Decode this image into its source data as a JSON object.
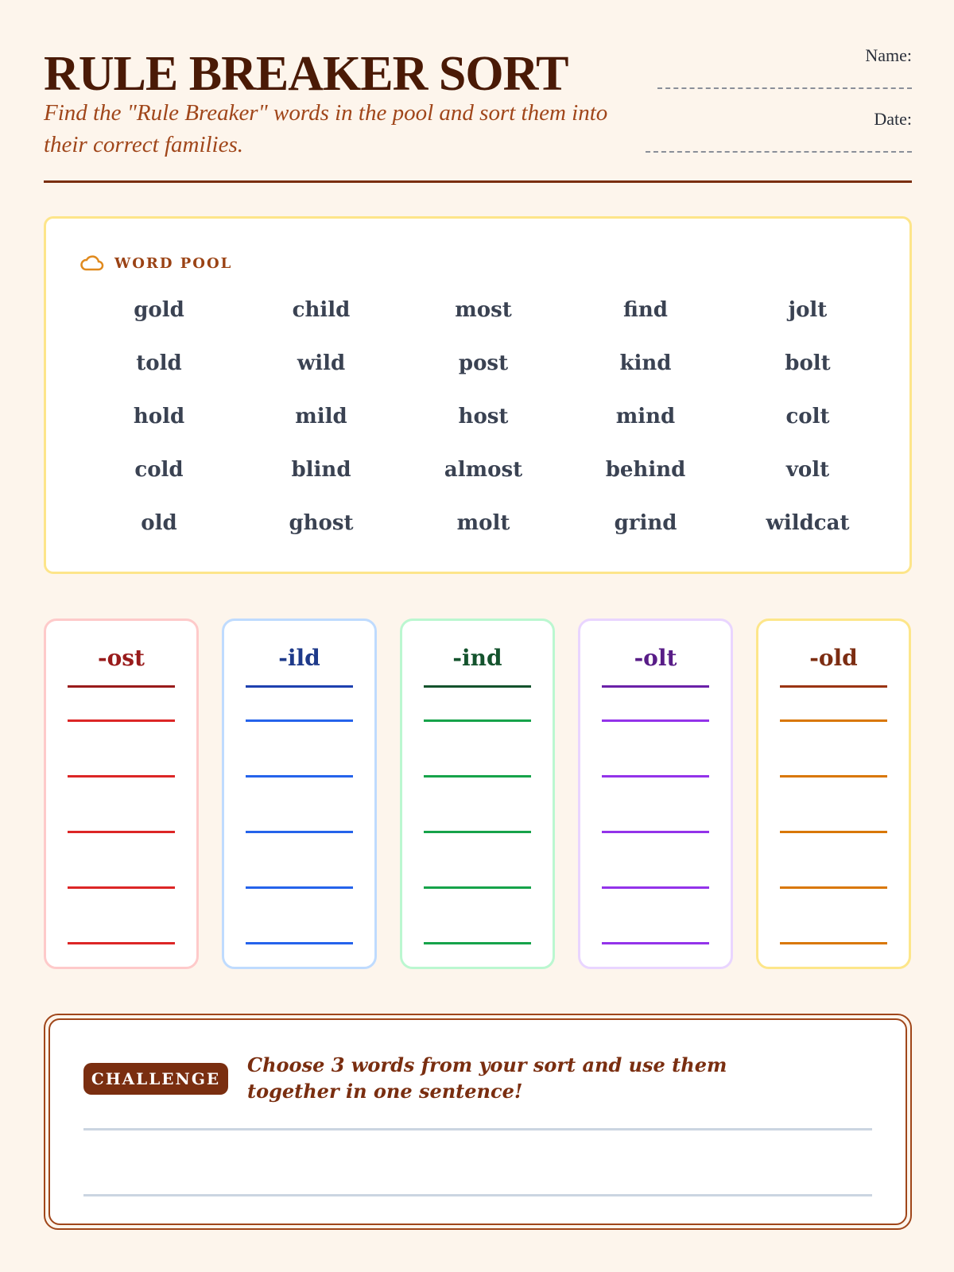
{
  "header": {
    "title": "RULE BREAKER SORT",
    "subtitle": "Find the \"Rule Breaker\" words in the pool and sort them into their correct families.",
    "name_label": "Name:",
    "date_label": "Date:"
  },
  "word_pool": {
    "heading": "WORD POOL",
    "icon": "cloud-icon",
    "words": [
      "gold",
      "child",
      "most",
      "find",
      "jolt",
      "told",
      "wild",
      "post",
      "kind",
      "bolt",
      "hold",
      "mild",
      "host",
      "mind",
      "colt",
      "cold",
      "blind",
      "almost",
      "behind",
      "volt",
      "old",
      "ghost",
      "molt",
      "grind",
      "wildcat"
    ]
  },
  "families": [
    {
      "label": "-ost",
      "border": "#fecaca",
      "title_color": "#991b1b",
      "head_line": "#991b1b",
      "line": "#dc2626"
    },
    {
      "label": "-ild",
      "border": "#bfdbfe",
      "title_color": "#1e3a8a",
      "head_line": "#1e40af",
      "line": "#2563eb"
    },
    {
      "label": "-ind",
      "border": "#bbf7d0",
      "title_color": "#14532d",
      "head_line": "#14532d",
      "line": "#16a34a"
    },
    {
      "label": "-olt",
      "border": "#e9d5ff",
      "title_color": "#581c87",
      "head_line": "#6b21a8",
      "line": "#9333ea"
    },
    {
      "label": "-old",
      "border": "#fde68a",
      "title_color": "#7c2d12",
      "head_line": "#9a3412",
      "line": "#d97706"
    }
  ],
  "challenge": {
    "badge": "CHALLENGE",
    "text": "Choose 3 words from your sort and use them together in one sentence!"
  }
}
